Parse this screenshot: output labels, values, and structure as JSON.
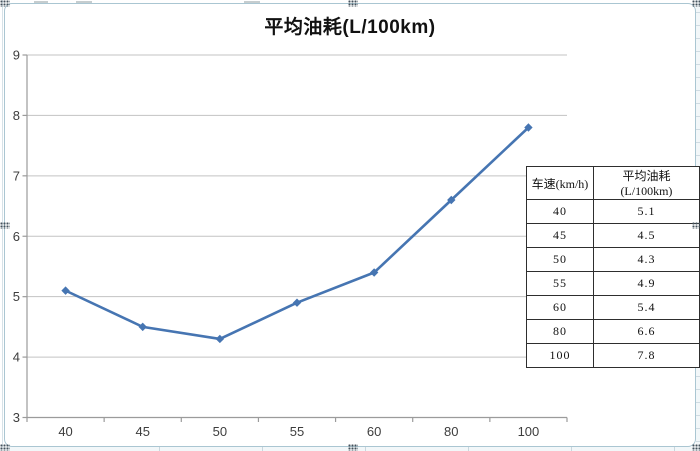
{
  "chart_data": {
    "type": "line",
    "title": "平均油耗(L/100km)",
    "categories": [
      "40",
      "45",
      "50",
      "55",
      "60",
      "80",
      "100"
    ],
    "series": [
      {
        "name": "平均油耗(L/100km)",
        "values": [
          5.1,
          4.5,
          4.3,
          4.9,
          5.4,
          6.6,
          7.8
        ]
      }
    ],
    "xlabel": "",
    "ylabel": "",
    "ylim": [
      3,
      9
    ],
    "yticks": [
      "3",
      "4",
      "5",
      "6",
      "7",
      "8",
      "9"
    ],
    "grid": "horizontal-only",
    "legend": "none",
    "marker": "diamond"
  },
  "table": {
    "columns": [
      "车速(km/h)",
      "平均油耗(L/100km)"
    ],
    "rows": [
      [
        "40",
        "5.1"
      ],
      [
        "45",
        "4.5"
      ],
      [
        "50",
        "4.3"
      ],
      [
        "55",
        "4.9"
      ],
      [
        "60",
        "5.4"
      ],
      [
        "80",
        "6.6"
      ],
      [
        "100",
        "7.8"
      ]
    ]
  },
  "selection": {
    "handles": [
      "top-left",
      "top-center",
      "top-right",
      "middle-left",
      "middle-right",
      "bottom-left",
      "bottom-center",
      "bottom-right"
    ]
  },
  "colors": {
    "series_line": "#4675b2",
    "gridline": "#c3c3c3",
    "axis": "#9b9b9b",
    "tick_label": "#3d3d3d",
    "chart_border": "#aac6d2",
    "table_border": "#2e2e2e",
    "handle_dot": "#44525c"
  }
}
